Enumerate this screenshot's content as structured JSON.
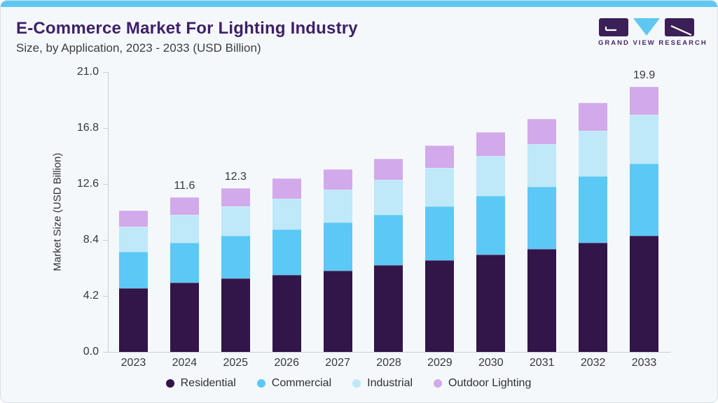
{
  "header": {
    "title": "E-Commerce Market For Lighting Industry",
    "subtitle": "Size, by Application, 2023 - 2033 (USD Billion)"
  },
  "logo": {
    "text": "GRAND VIEW RESEARCH"
  },
  "chart_data": {
    "type": "bar",
    "stacked": true,
    "title": "E-Commerce Market For Lighting Industry Size, by Application, 2023 - 2033 (USD Billion)",
    "categories": [
      "2023",
      "2024",
      "2025",
      "2026",
      "2027",
      "2028",
      "2029",
      "2030",
      "2031",
      "2032",
      "2033"
    ],
    "series": [
      {
        "name": "Residential",
        "color": "#321549",
        "values": [
          4.8,
          5.2,
          5.5,
          5.8,
          6.1,
          6.5,
          6.9,
          7.3,
          7.7,
          8.2,
          8.7
        ]
      },
      {
        "name": "Commercial",
        "color": "#5bc8f5",
        "values": [
          2.7,
          3.0,
          3.2,
          3.4,
          3.6,
          3.8,
          4.0,
          4.4,
          4.7,
          5.0,
          5.4
        ]
      },
      {
        "name": "Industrial",
        "color": "#bfe8f9",
        "values": [
          1.9,
          2.1,
          2.2,
          2.3,
          2.5,
          2.6,
          2.9,
          3.0,
          3.2,
          3.4,
          3.7
        ]
      },
      {
        "name": "Outdoor Lighting",
        "color": "#d2a9ea",
        "values": [
          1.2,
          1.3,
          1.4,
          1.5,
          1.5,
          1.6,
          1.7,
          1.8,
          1.9,
          2.1,
          2.1
        ]
      }
    ],
    "totals": [
      10.6,
      11.6,
      12.3,
      13.0,
      13.7,
      14.5,
      15.5,
      16.5,
      17.5,
      18.7,
      19.9
    ],
    "bar_labels": {
      "2024": "11.6",
      "2025": "12.3",
      "2033": "19.9"
    },
    "ylabel": "Market Size (USD Billion)",
    "xlabel": "",
    "yticks": [
      0.0,
      4.2,
      8.4,
      12.6,
      16.8,
      21.0
    ],
    "ylim": [
      0,
      21
    ],
    "grid": false,
    "legend_position": "bottom"
  },
  "colors": {
    "accent_blue": "#5ec8f2",
    "card_background": "#f4f8fb",
    "title_purple": "#3f2068",
    "text_dark": "#37373f",
    "axis_line": "#c7d0d8",
    "logo_purple": "#3b1f57"
  }
}
